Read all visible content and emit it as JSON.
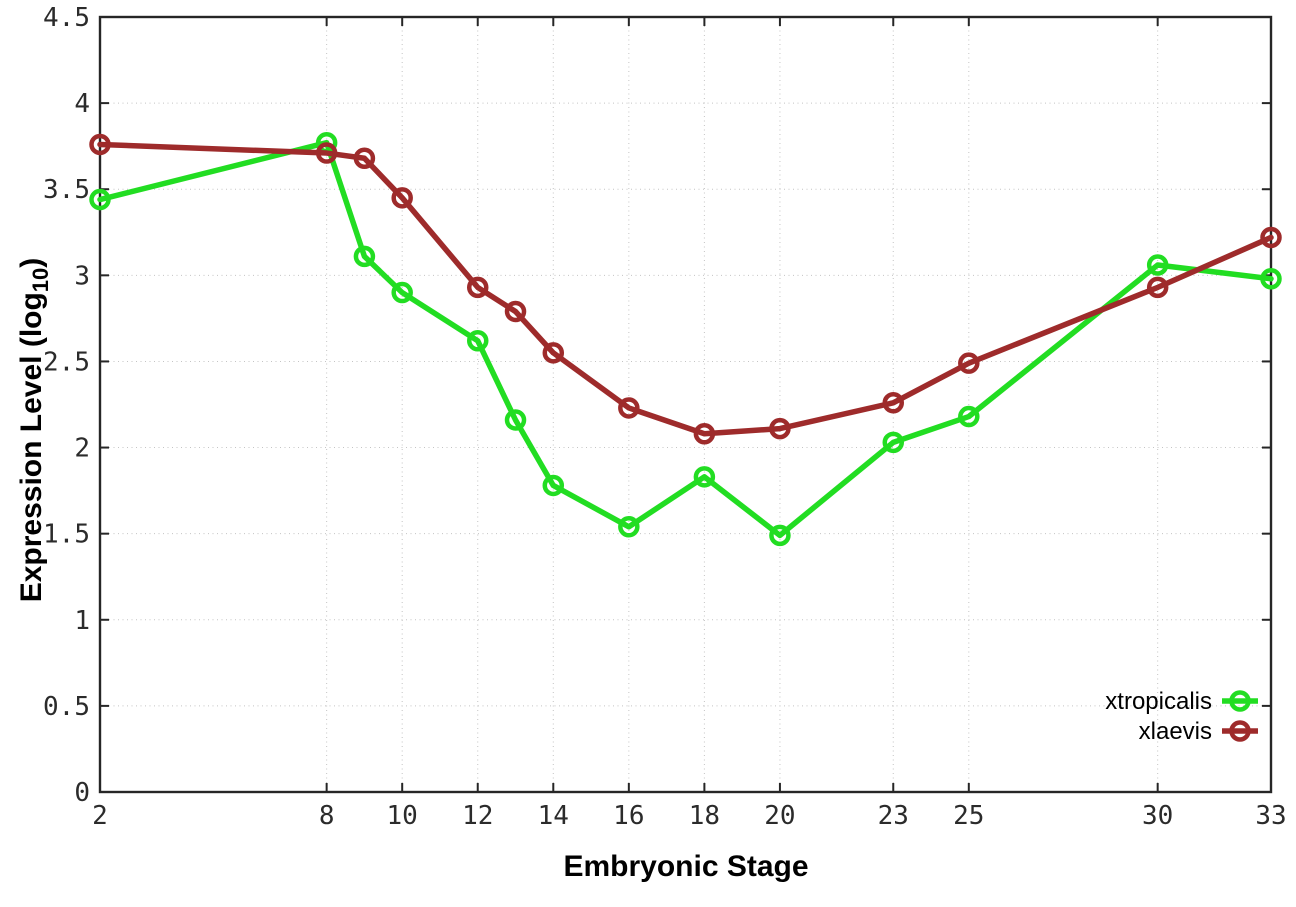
{
  "chart_data": {
    "type": "line",
    "title": "",
    "xlabel": "Embryonic Stage",
    "ylabel": "Expression Level (log10)",
    "ylabel_parts": {
      "base": "Expression Level (log",
      "sub": "10",
      "close": ")"
    },
    "xlim": [
      2,
      33
    ],
    "ylim": [
      0,
      4.5
    ],
    "x_ticks": [
      2,
      8,
      10,
      12,
      14,
      16,
      18,
      20,
      23,
      25,
      30,
      33
    ],
    "y_ticks": [
      0,
      0.5,
      1,
      1.5,
      2,
      2.5,
      3,
      3.5,
      4,
      4.5
    ],
    "grid": true,
    "legend_position": "bottom-right",
    "x": [
      2,
      8,
      9,
      10,
      12,
      13,
      14,
      16,
      18,
      20,
      23,
      25,
      30,
      33
    ],
    "series": [
      {
        "name": "xtropicalis",
        "color": "#22dd22",
        "values": [
          3.44,
          3.77,
          3.11,
          2.9,
          2.62,
          2.16,
          1.78,
          1.54,
          1.83,
          1.49,
          2.03,
          2.18,
          3.06,
          2.98
        ]
      },
      {
        "name": "xlaevis",
        "color": "#9e2b2b",
        "values": [
          3.76,
          3.71,
          3.68,
          3.45,
          2.93,
          2.79,
          2.55,
          2.23,
          2.08,
          2.11,
          2.26,
          2.49,
          2.93,
          3.22
        ]
      }
    ],
    "style": {
      "grid_color": "#c4c4c4",
      "border_color": "#262626",
      "tick_label_color": "#2b2b2b",
      "legend_text_color": "#000000"
    }
  }
}
